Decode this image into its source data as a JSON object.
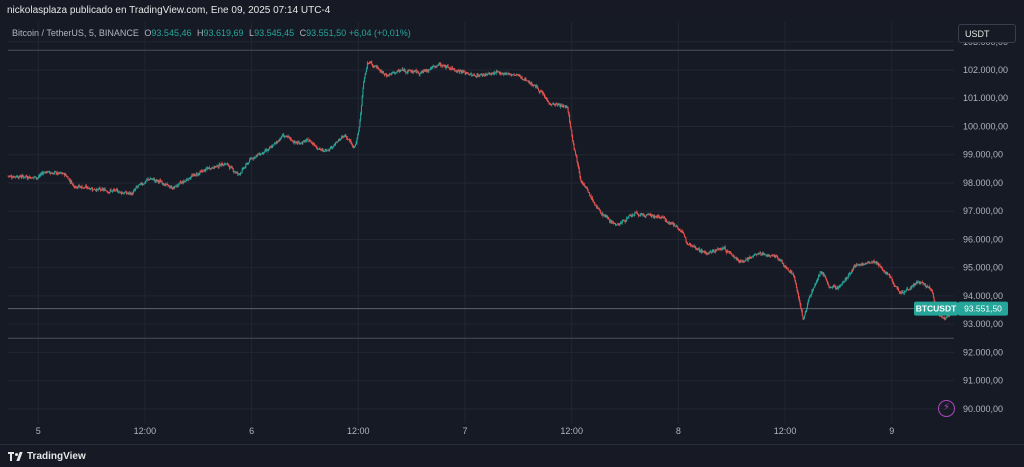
{
  "header": {
    "publisher_line": "nickolasplaza publicado en TradingView.com, Ene 09, 2025 07:14 UTC-4"
  },
  "legend": {
    "symbol": "Bitcoin / TetherUS, 5, BINANCE",
    "open_label": "O",
    "open": "93.545,46",
    "high_label": "H",
    "high": "93.619,69",
    "low_label": "L",
    "low": "93.545,45",
    "close_label": "C",
    "close": "93.551,50",
    "change": "+6,04 (+0,01%)"
  },
  "currency_button": "USDT",
  "price_tag": {
    "label": "BTCUSDT",
    "value": "93.551,50"
  },
  "footer": {
    "brand": "TradingView"
  },
  "colors": {
    "up": "#26a69a",
    "down": "#ef5350",
    "background": "#161a25",
    "grid": "#232632",
    "accent": "#ab47bc"
  },
  "icons": {
    "flash": "lightning-icon"
  },
  "chart_data": {
    "type": "candlestick",
    "title": "",
    "xlabel": "",
    "ylabel": "",
    "ylim": [
      89500,
      103700
    ],
    "y_ticks": [
      "103.000,00",
      "102.000,00",
      "101.000,00",
      "100.000,00",
      "99.000,00",
      "98.000,00",
      "97.000,00",
      "96.000,00",
      "95.000,00",
      "94.000,00",
      "93.000,00",
      "92.000,00",
      "91.000,00",
      "90.000,00"
    ],
    "y_tick_values": [
      103000,
      102000,
      101000,
      100000,
      99000,
      98000,
      97000,
      96000,
      95000,
      94000,
      93000,
      92000,
      91000,
      90000
    ],
    "x_ticks": [
      "5",
      "12:00",
      "6",
      "12:00",
      "7",
      "12:00",
      "8",
      "12:00",
      "9"
    ],
    "x_tick_hours": [
      0,
      12,
      24,
      36,
      48,
      60,
      72,
      84,
      96
    ],
    "x_range_hours": [
      -3.4,
      103
    ],
    "horizontal_lines": [
      102700,
      93551.5,
      92500
    ],
    "anchors": [
      {
        "t": -3.4,
        "p": 98250
      },
      {
        "t": 0,
        "p": 98200
      },
      {
        "t": 0.5,
        "p": 98400
      },
      {
        "t": 3,
        "p": 98300
      },
      {
        "t": 4,
        "p": 97900
      },
      {
        "t": 7,
        "p": 97750
      },
      {
        "t": 9,
        "p": 97700
      },
      {
        "t": 10.5,
        "p": 97600
      },
      {
        "t": 11,
        "p": 97850
      },
      {
        "t": 12.5,
        "p": 98150
      },
      {
        "t": 14,
        "p": 98000
      },
      {
        "t": 15,
        "p": 97800
      },
      {
        "t": 17,
        "p": 98200
      },
      {
        "t": 19,
        "p": 98500
      },
      {
        "t": 21,
        "p": 98700
      },
      {
        "t": 22.5,
        "p": 98300
      },
      {
        "t": 24,
        "p": 98900
      },
      {
        "t": 26,
        "p": 99200
      },
      {
        "t": 27.5,
        "p": 99700
      },
      {
        "t": 29,
        "p": 99400
      },
      {
        "t": 30.5,
        "p": 99500
      },
      {
        "t": 32,
        "p": 99100
      },
      {
        "t": 33,
        "p": 99300
      },
      {
        "t": 34.5,
        "p": 99700
      },
      {
        "t": 35.5,
        "p": 99200
      },
      {
        "t": 36,
        "p": 99800
      },
      {
        "t": 36.5,
        "p": 101500
      },
      {
        "t": 37,
        "p": 102300
      },
      {
        "t": 38,
        "p": 102100
      },
      {
        "t": 39,
        "p": 101800
      },
      {
        "t": 41,
        "p": 102000
      },
      {
        "t": 43,
        "p": 101900
      },
      {
        "t": 45,
        "p": 102200
      },
      {
        "t": 47,
        "p": 102000
      },
      {
        "t": 49,
        "p": 101800
      },
      {
        "t": 52,
        "p": 101900
      },
      {
        "t": 54,
        "p": 101800
      },
      {
        "t": 56,
        "p": 101400
      },
      {
        "t": 57.5,
        "p": 100800
      },
      {
        "t": 59.5,
        "p": 100700
      },
      {
        "t": 60,
        "p": 99600
      },
      {
        "t": 61,
        "p": 98100
      },
      {
        "t": 63,
        "p": 97000
      },
      {
        "t": 65,
        "p": 96500
      },
      {
        "t": 67,
        "p": 96900
      },
      {
        "t": 70,
        "p": 96800
      },
      {
        "t": 72,
        "p": 96400
      },
      {
        "t": 73,
        "p": 95900
      },
      {
        "t": 75,
        "p": 95500
      },
      {
        "t": 77,
        "p": 95700
      },
      {
        "t": 79,
        "p": 95200
      },
      {
        "t": 81,
        "p": 95500
      },
      {
        "t": 83,
        "p": 95400
      },
      {
        "t": 84,
        "p": 95000
      },
      {
        "t": 85,
        "p": 94700
      },
      {
        "t": 86,
        "p": 93100
      },
      {
        "t": 86.7,
        "p": 94000
      },
      {
        "t": 88,
        "p": 94900
      },
      {
        "t": 89,
        "p": 94300
      },
      {
        "t": 90,
        "p": 94300
      },
      {
        "t": 92,
        "p": 95100
      },
      {
        "t": 94,
        "p": 95200
      },
      {
        "t": 95.5,
        "p": 94800
      },
      {
        "t": 96,
        "p": 94500
      },
      {
        "t": 97,
        "p": 94100
      },
      {
        "t": 99,
        "p": 94500
      },
      {
        "t": 100.5,
        "p": 94200
      },
      {
        "t": 101,
        "p": 93400
      },
      {
        "t": 102,
        "p": 93200
      },
      {
        "t": 103,
        "p": 93551
      }
    ]
  }
}
